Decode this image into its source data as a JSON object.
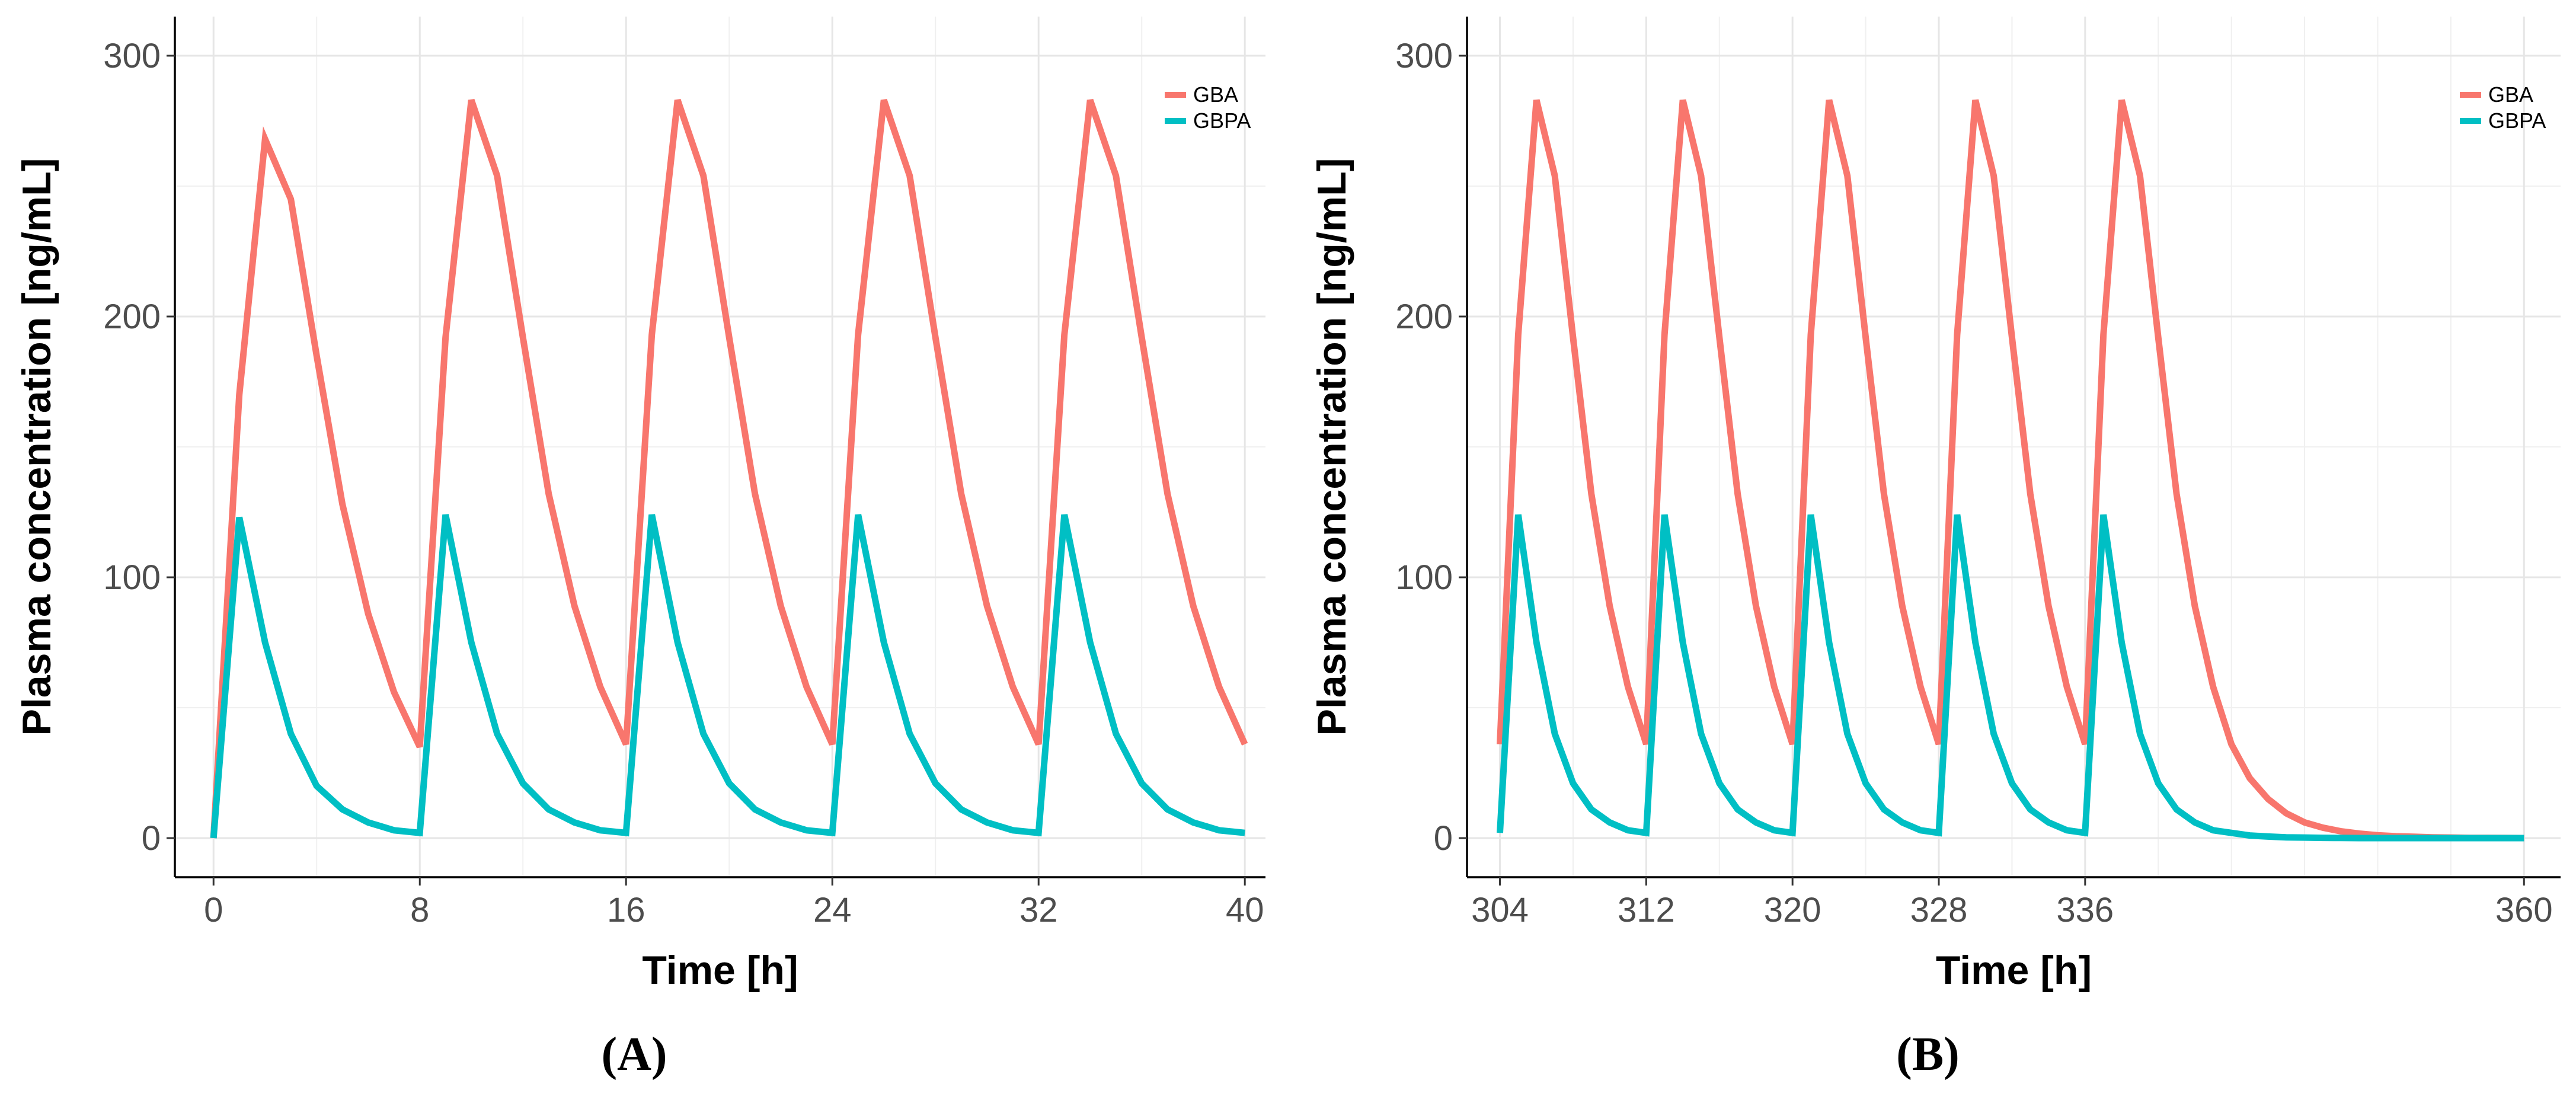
{
  "chart_data": [
    {
      "type": "line",
      "panel_label": "(A)",
      "xlabel": "Time [h]",
      "ylabel": "Plasma concentration [ng/mL]",
      "xlim": [
        -1.5,
        40.8
      ],
      "ylim": [
        -15,
        315
      ],
      "xticks": [
        0,
        8,
        16,
        24,
        32,
        40
      ],
      "xtick_labels": [
        "0",
        "8",
        "16",
        "24",
        "32",
        "40"
      ],
      "yticks": [
        0,
        100,
        200,
        300
      ],
      "ytick_labels": [
        "0",
        "100",
        "200",
        "300"
      ],
      "grid": true,
      "legend_position": "top-right",
      "series": [
        {
          "name": "GBA",
          "color": "#F8766D",
          "x": [
            0,
            1,
            2,
            3,
            4,
            5,
            6,
            7,
            8,
            9,
            10,
            11,
            12,
            13,
            14,
            15,
            16,
            17,
            18,
            19,
            20,
            21,
            22,
            23,
            24,
            25,
            26,
            27,
            28,
            29,
            30,
            31,
            32,
            33,
            34,
            35,
            36,
            37,
            38,
            39,
            40
          ],
          "y": [
            0,
            170,
            268,
            245,
            185,
            128,
            86,
            56,
            35,
            192,
            283,
            254,
            192,
            132,
            89,
            58,
            36,
            193,
            283,
            254,
            192,
            132,
            89,
            58,
            36,
            193,
            283,
            254,
            192,
            132,
            89,
            58,
            36,
            193,
            283,
            254,
            192,
            132,
            89,
            58,
            36
          ]
        },
        {
          "name": "GBPA",
          "color": "#00BFC4",
          "x": [
            0,
            1,
            2,
            3,
            4,
            5,
            6,
            7,
            8,
            9,
            10,
            11,
            12,
            13,
            14,
            15,
            16,
            17,
            18,
            19,
            20,
            21,
            22,
            23,
            24,
            25,
            26,
            27,
            28,
            29,
            30,
            31,
            32,
            33,
            34,
            35,
            36,
            37,
            38,
            39,
            40
          ],
          "y": [
            0,
            123,
            75,
            40,
            20,
            11,
            6,
            3,
            2,
            124,
            75,
            40,
            21,
            11,
            6,
            3,
            2,
            124,
            75,
            40,
            21,
            11,
            6,
            3,
            2,
            124,
            75,
            40,
            21,
            11,
            6,
            3,
            2,
            124,
            75,
            40,
            21,
            11,
            6,
            3,
            2
          ]
        }
      ]
    },
    {
      "type": "line",
      "panel_label": "(B)",
      "xlabel": "Time [h]",
      "ylabel": "Plasma concentration [ng/mL]",
      "xlim": [
        302.2,
        362
      ],
      "ylim": [
        -15,
        315
      ],
      "xticks": [
        304,
        312,
        320,
        328,
        336,
        360
      ],
      "xtick_labels": [
        "304",
        "312",
        "320",
        "328",
        "336",
        "360"
      ],
      "yticks": [
        0,
        100,
        200,
        300
      ],
      "ytick_labels": [
        "0",
        "100",
        "200",
        "300"
      ],
      "grid": true,
      "legend_position": "top-right",
      "series": [
        {
          "name": "GBA",
          "color": "#F8766D",
          "x": [
            304,
            305,
            306,
            307,
            308,
            309,
            310,
            311,
            312,
            313,
            314,
            315,
            316,
            317,
            318,
            319,
            320,
            321,
            322,
            323,
            324,
            325,
            326,
            327,
            328,
            329,
            330,
            331,
            332,
            333,
            334,
            335,
            336,
            337,
            338,
            339,
            340,
            341,
            342,
            343,
            344,
            345,
            346,
            347,
            348,
            349,
            350,
            351,
            352,
            353,
            354,
            355,
            356,
            357,
            358,
            359,
            360
          ],
          "y": [
            36,
            193,
            283,
            254,
            192,
            132,
            89,
            58,
            36,
            193,
            283,
            254,
            192,
            132,
            89,
            58,
            36,
            193,
            283,
            254,
            192,
            132,
            89,
            58,
            36,
            193,
            283,
            254,
            192,
            132,
            89,
            58,
            36,
            193,
            283,
            254,
            192,
            132,
            89,
            58,
            36,
            23,
            15,
            9.5,
            6,
            4,
            2.6,
            1.7,
            1.1,
            0.7,
            0.5,
            0.3,
            0.2,
            0.1,
            0.1,
            0.05,
            0
          ]
        },
        {
          "name": "GBPA",
          "color": "#00BFC4",
          "x": [
            304,
            305,
            306,
            307,
            308,
            309,
            310,
            311,
            312,
            313,
            314,
            315,
            316,
            317,
            318,
            319,
            320,
            321,
            322,
            323,
            324,
            325,
            326,
            327,
            328,
            329,
            330,
            331,
            332,
            333,
            334,
            335,
            336,
            337,
            338,
            339,
            340,
            341,
            342,
            343,
            344,
            345,
            346,
            347,
            348,
            349,
            350,
            351,
            352,
            353,
            354,
            355,
            356,
            357,
            358,
            359,
            360
          ],
          "y": [
            2,
            124,
            75,
            40,
            21,
            11,
            6,
            3,
            2,
            124,
            75,
            40,
            21,
            11,
            6,
            3,
            2,
            124,
            75,
            40,
            21,
            11,
            6,
            3,
            2,
            124,
            75,
            40,
            21,
            11,
            6,
            3,
            2,
            124,
            75,
            40,
            21,
            11,
            6,
            3,
            2,
            1,
            0.6,
            0.3,
            0.2,
            0.1,
            0.05,
            0,
            0,
            0,
            0,
            0,
            0,
            0,
            0,
            0,
            0
          ]
        }
      ]
    }
  ]
}
